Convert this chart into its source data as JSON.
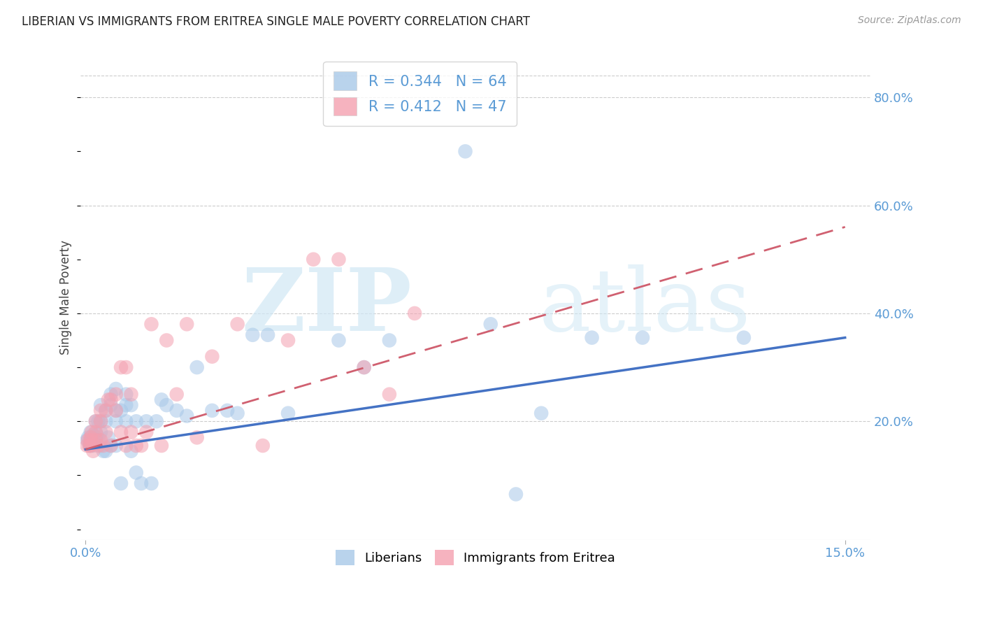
{
  "title": "LIBERIAN VS IMMIGRANTS FROM ERITREA SINGLE MALE POVERTY CORRELATION CHART",
  "source": "Source: ZipAtlas.com",
  "ylabel": "Single Male Poverty",
  "xlim": [
    -0.001,
    0.155
  ],
  "ylim": [
    -0.02,
    0.88
  ],
  "yticks": [
    0.2,
    0.4,
    0.6,
    0.8
  ],
  "ytick_labels": [
    "20.0%",
    "40.0%",
    "60.0%",
    "80.0%"
  ],
  "xticks": [
    0.0,
    0.15
  ],
  "xtick_labels": [
    "0.0%",
    "15.0%"
  ],
  "liberian_R": "0.344",
  "liberian_N": "64",
  "eritrea_R": "0.412",
  "eritrea_N": "47",
  "liberian_color": "#a8c8e8",
  "eritrea_color": "#f4a0b0",
  "liberian_line_color": "#4472c4",
  "eritrea_line_color": "#d06070",
  "bg_color": "#ffffff",
  "watermark_zip": "ZIP",
  "watermark_atlas": "atlas",
  "label_color": "#5b9bd5",
  "lib_line_x0": 0.0,
  "lib_line_y0": 0.148,
  "lib_line_x1": 0.15,
  "lib_line_y1": 0.355,
  "eri_line_x0": 0.0,
  "eri_line_y0": 0.148,
  "eri_line_x1": 0.15,
  "eri_line_y1": 0.56,
  "liberian_x": [
    0.0003,
    0.0005,
    0.0008,
    0.001,
    0.001,
    0.001,
    0.0012,
    0.0015,
    0.0015,
    0.002,
    0.002,
    0.002,
    0.0022,
    0.0025,
    0.003,
    0.003,
    0.003,
    0.003,
    0.0035,
    0.004,
    0.004,
    0.004,
    0.0045,
    0.005,
    0.005,
    0.005,
    0.006,
    0.006,
    0.006,
    0.006,
    0.007,
    0.007,
    0.008,
    0.008,
    0.008,
    0.009,
    0.009,
    0.01,
    0.01,
    0.011,
    0.012,
    0.013,
    0.014,
    0.015,
    0.016,
    0.018,
    0.02,
    0.022,
    0.025,
    0.028,
    0.03,
    0.033,
    0.036,
    0.04,
    0.05,
    0.055,
    0.06,
    0.075,
    0.08,
    0.085,
    0.09,
    0.1,
    0.11,
    0.13
  ],
  "liberian_y": [
    0.165,
    0.17,
    0.155,
    0.165,
    0.18,
    0.155,
    0.17,
    0.175,
    0.155,
    0.17,
    0.2,
    0.165,
    0.175,
    0.2,
    0.18,
    0.2,
    0.23,
    0.155,
    0.145,
    0.2,
    0.22,
    0.145,
    0.17,
    0.23,
    0.25,
    0.155,
    0.22,
    0.2,
    0.26,
    0.155,
    0.22,
    0.085,
    0.2,
    0.23,
    0.25,
    0.23,
    0.145,
    0.2,
    0.105,
    0.085,
    0.2,
    0.085,
    0.2,
    0.24,
    0.23,
    0.22,
    0.21,
    0.3,
    0.22,
    0.22,
    0.215,
    0.36,
    0.36,
    0.215,
    0.35,
    0.3,
    0.35,
    0.7,
    0.38,
    0.065,
    0.215,
    0.355,
    0.355,
    0.355
  ],
  "eritrea_x": [
    0.0003,
    0.0005,
    0.0008,
    0.001,
    0.001,
    0.001,
    0.0012,
    0.0015,
    0.002,
    0.002,
    0.002,
    0.0025,
    0.003,
    0.003,
    0.003,
    0.0035,
    0.004,
    0.004,
    0.0045,
    0.005,
    0.005,
    0.006,
    0.006,
    0.007,
    0.007,
    0.008,
    0.008,
    0.009,
    0.009,
    0.01,
    0.011,
    0.012,
    0.013,
    0.015,
    0.016,
    0.018,
    0.02,
    0.022,
    0.025,
    0.03,
    0.035,
    0.04,
    0.045,
    0.05,
    0.055,
    0.06,
    0.065
  ],
  "eritrea_y": [
    0.155,
    0.165,
    0.155,
    0.165,
    0.17,
    0.155,
    0.18,
    0.145,
    0.18,
    0.2,
    0.165,
    0.155,
    0.2,
    0.22,
    0.165,
    0.155,
    0.22,
    0.18,
    0.24,
    0.155,
    0.24,
    0.25,
    0.22,
    0.3,
    0.18,
    0.3,
    0.155,
    0.25,
    0.18,
    0.155,
    0.155,
    0.18,
    0.38,
    0.155,
    0.35,
    0.25,
    0.38,
    0.17,
    0.32,
    0.38,
    0.155,
    0.35,
    0.5,
    0.5,
    0.3,
    0.25,
    0.4
  ]
}
